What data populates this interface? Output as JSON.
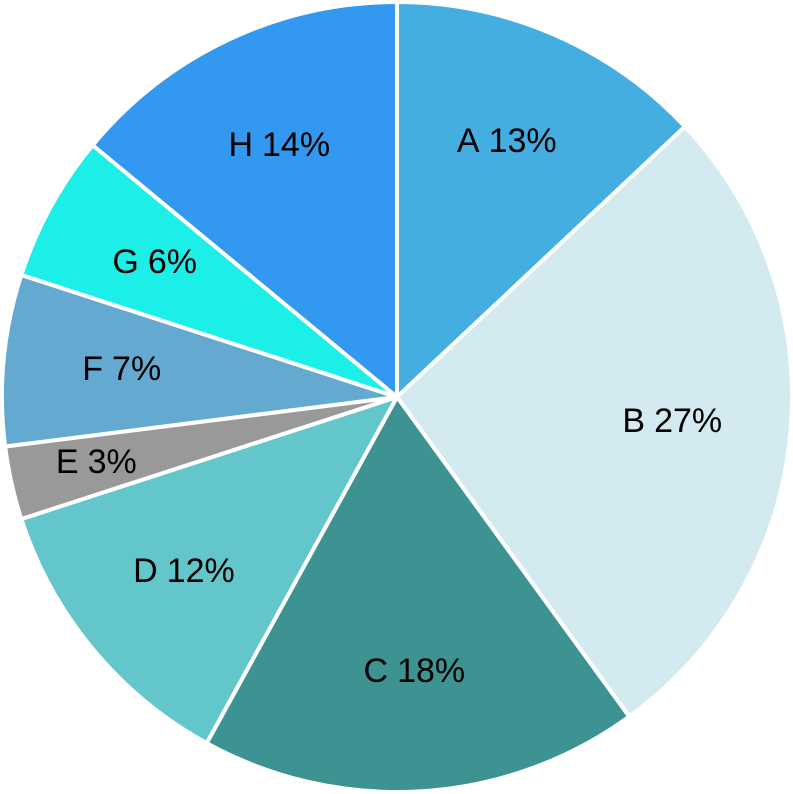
{
  "chart_data": {
    "type": "pie",
    "categories": [
      "A",
      "B",
      "C",
      "D",
      "E",
      "F",
      "G",
      "H"
    ],
    "values": [
      13,
      27,
      18,
      12,
      3,
      7,
      6,
      14
    ],
    "value_labels": [
      "13%",
      "27%",
      "18%",
      "12%",
      "3%",
      "7%",
      "6%",
      "14%"
    ],
    "colors": [
      "#45aee0",
      "#d3ebf0",
      "#3d9392",
      "#62c6cb",
      "#999999",
      "#64a9cf",
      "#1cefe8",
      "#3399f0"
    ]
  }
}
